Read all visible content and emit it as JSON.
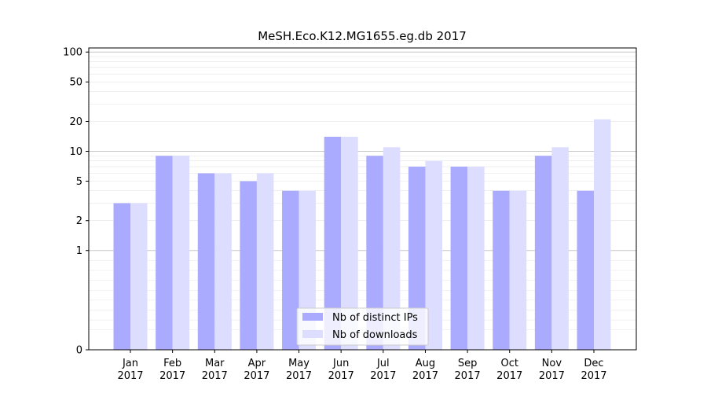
{
  "chart_data": {
    "type": "bar",
    "title": "MeSH.Eco.K12.MG1655.eg.db 2017",
    "xlabel": "",
    "ylabel": "",
    "y_scale": "symlog",
    "ylim": [
      0,
      110
    ],
    "y_ticks": [
      {
        "value": 0,
        "label": "0"
      },
      {
        "value": 1,
        "label": "1"
      },
      {
        "value": 2,
        "label": "2"
      },
      {
        "value": 5,
        "label": "5"
      },
      {
        "value": 10,
        "label": "10"
      },
      {
        "value": 20,
        "label": "20"
      },
      {
        "value": 50,
        "label": "50"
      },
      {
        "value": 100,
        "label": "100"
      }
    ],
    "categories": [
      {
        "month": "Jan",
        "year": "2017"
      },
      {
        "month": "Feb",
        "year": "2017"
      },
      {
        "month": "Mar",
        "year": "2017"
      },
      {
        "month": "Apr",
        "year": "2017"
      },
      {
        "month": "May",
        "year": "2017"
      },
      {
        "month": "Jun",
        "year": "2017"
      },
      {
        "month": "Jul",
        "year": "2017"
      },
      {
        "month": "Aug",
        "year": "2017"
      },
      {
        "month": "Sep",
        "year": "2017"
      },
      {
        "month": "Oct",
        "year": "2017"
      },
      {
        "month": "Nov",
        "year": "2017"
      },
      {
        "month": "Dec",
        "year": "2017"
      }
    ],
    "series": [
      {
        "name": "Nb of distinct IPs",
        "color": "#aaaaff",
        "values": [
          3,
          9,
          6,
          5,
          4,
          14,
          9,
          7,
          7,
          4,
          9,
          4
        ]
      },
      {
        "name": "Nb of downloads",
        "color": "#ddddff",
        "values": [
          3,
          9,
          6,
          6,
          4,
          14,
          11,
          8,
          7,
          4,
          11,
          21
        ]
      }
    ],
    "grid": true,
    "legend_position": "bottom-center"
  }
}
